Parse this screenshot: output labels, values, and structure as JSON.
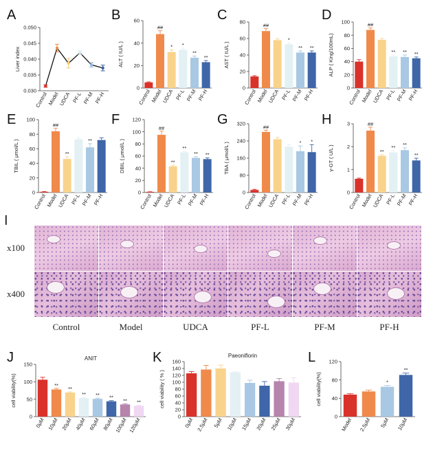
{
  "chart_data": [
    {
      "id": "A",
      "type": "line",
      "panel_label": "A",
      "title": "",
      "ylabel": "Liver index",
      "xlabel": "",
      "categories": [
        "Control",
        "Model",
        "UDCA",
        "PF-L",
        "PF-M",
        "PF-H"
      ],
      "values": [
        0.0315,
        0.0435,
        0.0387,
        0.042,
        0.0382,
        0.0372
      ],
      "errors": [
        0.0004,
        0.0012,
        0.0015,
        0.0006,
        0.0007,
        0.0009
      ],
      "ylim": [
        0.03,
        0.05
      ],
      "yticks": [
        "0.030",
        "0.035",
        "0.040",
        "0.045",
        "0.050"
      ],
      "yticks_v": [
        0.03,
        0.035,
        0.04,
        0.045,
        0.05
      ],
      "colors": [
        "#d9322a",
        "#f08a4b",
        "#f7c873",
        "#d6e9ef",
        "#8fb6d9",
        "#3a5f9e"
      ],
      "line_color": "#111111",
      "annotations": [
        "",
        "",
        "",
        "",
        "",
        ""
      ]
    },
    {
      "id": "B",
      "type": "bar",
      "panel_label": "B",
      "title": "",
      "ylabel": "ALT ( IU/L )",
      "xlabel": "",
      "categories": [
        "Control",
        "Model",
        "UDCA",
        "PF-L",
        "PF-M",
        "PF-H"
      ],
      "values": [
        5,
        48,
        32,
        34,
        27,
        23
      ],
      "errors": [
        0.5,
        3,
        2,
        1.5,
        1.5,
        1.5
      ],
      "ylim": [
        0,
        60
      ],
      "yticks": [
        "0",
        "20",
        "40",
        "60"
      ],
      "yticks_v": [
        0,
        20,
        40,
        60
      ],
      "colors": [
        "#d9322a",
        "#f08a4b",
        "#f9d38c",
        "#e3f0f4",
        "#a9c8e3",
        "#3f66a8"
      ],
      "annotations": [
        "",
        "##",
        "*",
        "*",
        "**",
        "**"
      ]
    },
    {
      "id": "C",
      "type": "bar",
      "panel_label": "C",
      "title": "",
      "ylabel": "AST ( IU/L )",
      "xlabel": "",
      "categories": [
        "Control",
        "Model",
        "UDCA",
        "PF-L",
        "PF-M",
        "PF-H"
      ],
      "values": [
        14,
        69,
        58,
        53,
        43,
        43
      ],
      "errors": [
        1,
        3,
        1.5,
        1.5,
        2,
        2
      ],
      "ylim": [
        0,
        80
      ],
      "yticks": [
        "0",
        "20",
        "40",
        "60",
        "80"
      ],
      "yticks_v": [
        0,
        20,
        40,
        60,
        80
      ],
      "colors": [
        "#d9322a",
        "#f08a4b",
        "#f9d38c",
        "#e3f0f4",
        "#a9c8e3",
        "#3f66a8"
      ],
      "annotations": [
        "",
        "##",
        "",
        "*",
        "**",
        "**"
      ]
    },
    {
      "id": "D",
      "type": "bar",
      "panel_label": "D",
      "title": "",
      "ylabel": "ALP ( King/100mL)",
      "xlabel": "",
      "categories": [
        "Control",
        "Model",
        "UDCA",
        "PF-L",
        "PF-M",
        "PF-H"
      ],
      "values": [
        40,
        88,
        73,
        48,
        47,
        45
      ],
      "errors": [
        3,
        3,
        2,
        2,
        3,
        2
      ],
      "ylim": [
        0,
        100
      ],
      "yticks": [
        "0",
        "20",
        "40",
        "60",
        "80",
        "100"
      ],
      "yticks_v": [
        0,
        20,
        40,
        60,
        80,
        100
      ],
      "colors": [
        "#d9322a",
        "#f08a4b",
        "#f9d38c",
        "#e3f0f4",
        "#a9c8e3",
        "#3f66a8"
      ],
      "annotations": [
        "",
        "##",
        "",
        "**",
        "**",
        "**"
      ]
    },
    {
      "id": "E",
      "type": "bar",
      "panel_label": "E",
      "title": "",
      "ylabel": "TBIL ( μmol/L )",
      "xlabel": "",
      "categories": [
        "Control",
        "Model",
        "UDCA",
        "PF-L",
        "PF-M",
        "PF-H"
      ],
      "values": [
        1,
        84,
        46,
        73,
        62,
        72
      ],
      "errors": [
        0.3,
        4,
        3,
        2,
        5,
        3
      ],
      "ylim": [
        0,
        100
      ],
      "yticks": [
        "0",
        "20",
        "40",
        "60",
        "80",
        "100"
      ],
      "yticks_v": [
        0,
        20,
        40,
        60,
        80,
        100
      ],
      "colors": [
        "#d9322a",
        "#f08a4b",
        "#f9d38c",
        "#e3f0f4",
        "#a9c8e3",
        "#3f66a8"
      ],
      "annotations": [
        "",
        "##",
        "**",
        "",
        "**",
        ""
      ]
    },
    {
      "id": "F",
      "type": "bar",
      "panel_label": "F",
      "title": "",
      "ylabel": "DBIL ( μmol/L )",
      "xlabel": "",
      "categories": [
        "Control",
        "Model",
        "UDCA",
        "PF-L",
        "PF-M",
        "PF-H"
      ],
      "values": [
        1,
        95,
        43,
        66,
        57,
        55
      ],
      "errors": [
        0.3,
        6,
        2,
        2,
        2,
        2
      ],
      "ylim": [
        0,
        120
      ],
      "yticks": [
        "0",
        "20",
        "40",
        "60",
        "80",
        "100",
        "120"
      ],
      "yticks_v": [
        0,
        20,
        40,
        60,
        80,
        100,
        120
      ],
      "colors": [
        "#d9322a",
        "#f08a4b",
        "#f9d38c",
        "#e3f0f4",
        "#a9c8e3",
        "#3f66a8"
      ],
      "annotations": [
        "",
        "##",
        "**",
        "**",
        "**",
        "**"
      ]
    },
    {
      "id": "G",
      "type": "bar",
      "panel_label": "G",
      "title": "",
      "ylabel": "TBA ( μmol/L )",
      "xlabel": "",
      "categories": [
        "Control",
        "Model",
        "UDCA",
        "PF-L",
        "PF-M",
        "PF-H"
      ],
      "values": [
        12,
        282,
        248,
        213,
        192,
        188
      ],
      "errors": [
        3,
        8,
        8,
        10,
        25,
        35
      ],
      "ylim": [
        0,
        320
      ],
      "yticks": [
        "0",
        "80",
        "160",
        "240",
        "320"
      ],
      "yticks_v": [
        0,
        80,
        160,
        240,
        320
      ],
      "colors": [
        "#d9322a",
        "#f08a4b",
        "#f9d38c",
        "#e3f0f4",
        "#a9c8e3",
        "#3f66a8"
      ],
      "annotations": [
        "",
        "##",
        "",
        "",
        "*",
        "*"
      ]
    },
    {
      "id": "H",
      "type": "bar",
      "panel_label": "H",
      "title": "",
      "ylabel": "γ-GT ( U/L )",
      "xlabel": "",
      "categories": [
        "Control",
        "Model",
        "UDCA",
        "PF-L",
        "PF-M",
        "PF-H"
      ],
      "values": [
        0.6,
        2.7,
        1.6,
        1.75,
        1.85,
        1.4
      ],
      "errors": [
        0.03,
        0.15,
        0.05,
        0.08,
        0.1,
        0.1
      ],
      "ylim": [
        0,
        3
      ],
      "yticks": [
        "0",
        "1",
        "2",
        "3"
      ],
      "yticks_v": [
        0,
        1,
        2,
        3
      ],
      "colors": [
        "#d9322a",
        "#f08a4b",
        "#f9d38c",
        "#e3f0f4",
        "#a9c8e3",
        "#3f66a8"
      ],
      "annotations": [
        "",
        "##",
        "**",
        "**",
        "**",
        "**"
      ]
    },
    {
      "id": "J",
      "type": "bar",
      "panel_label": "J",
      "title": "ANIT",
      "ylabel": "cell viability(%)",
      "xlabel": "",
      "categories": [
        "0μM",
        "10μM",
        "20μM",
        "40μM",
        "60μM",
        "80μM",
        "100μM",
        "120μM"
      ],
      "values": [
        106,
        78,
        69,
        53,
        51,
        44,
        35,
        31
      ],
      "errors": [
        7,
        3,
        2,
        2,
        2,
        2,
        2,
        1.5
      ],
      "ylim": [
        0,
        150
      ],
      "yticks": [
        "0",
        "50",
        "100",
        "150"
      ],
      "yticks_v": [
        0,
        50,
        100,
        150
      ],
      "colors": [
        "#d9322a",
        "#f08a4b",
        "#f9d38c",
        "#e3f0f4",
        "#a9c8e3",
        "#3f66a8",
        "#b684ad",
        "#f0d7f2"
      ],
      "annotations": [
        "",
        "**",
        "**",
        "**",
        "**",
        "**",
        "**",
        "**"
      ]
    },
    {
      "id": "K",
      "type": "bar",
      "panel_label": "K",
      "title": "Paeoniflorin",
      "ylabel": "cell viability ( % )",
      "xlabel": "",
      "categories": [
        "0μM",
        "2.5μM",
        "5μM",
        "10μM",
        "15μM",
        "20μM",
        "25μM",
        "30μM"
      ],
      "values": [
        126,
        137,
        140,
        129,
        98,
        90,
        103,
        99
      ],
      "errors": [
        5,
        12,
        10,
        2,
        8,
        12,
        8,
        14
      ],
      "ylim": [
        0,
        160
      ],
      "yticks": [
        "0",
        "20",
        "40",
        "60",
        "80",
        "100",
        "120",
        "140",
        "160"
      ],
      "yticks_v": [
        0,
        20,
        40,
        60,
        80,
        100,
        120,
        140,
        160
      ],
      "colors": [
        "#d9322a",
        "#f08a4b",
        "#f9d38c",
        "#e3f0f4",
        "#a9c8e3",
        "#3f66a8",
        "#b684ad",
        "#f0d7f2"
      ],
      "annotations": [
        "",
        "",
        "",
        "",
        "",
        "",
        "",
        ""
      ]
    },
    {
      "id": "L",
      "type": "bar",
      "panel_label": "L",
      "title": "",
      "ylabel": "cell viability(%)",
      "xlabel": "",
      "categories": [
        "Model",
        "2.5μM",
        "5μM",
        "10μM"
      ],
      "values": [
        48,
        55,
        65,
        91
      ],
      "errors": [
        2,
        3,
        3,
        4
      ],
      "ylim": [
        0,
        120
      ],
      "yticks": [
        "0",
        "40",
        "80",
        "120"
      ],
      "yticks_v": [
        0,
        40,
        80,
        120
      ],
      "colors": [
        "#d9322a",
        "#f08a4b",
        "#a9c8e3",
        "#3f66a8"
      ],
      "annotations": [
        "",
        "",
        "*",
        "**"
      ]
    }
  ],
  "histology": {
    "panel_label": "I",
    "rows": [
      "x100",
      "x400"
    ],
    "columns": [
      "Control",
      "Model",
      "UDCA",
      "PF-L",
      "PF-M",
      "PF-H"
    ]
  }
}
